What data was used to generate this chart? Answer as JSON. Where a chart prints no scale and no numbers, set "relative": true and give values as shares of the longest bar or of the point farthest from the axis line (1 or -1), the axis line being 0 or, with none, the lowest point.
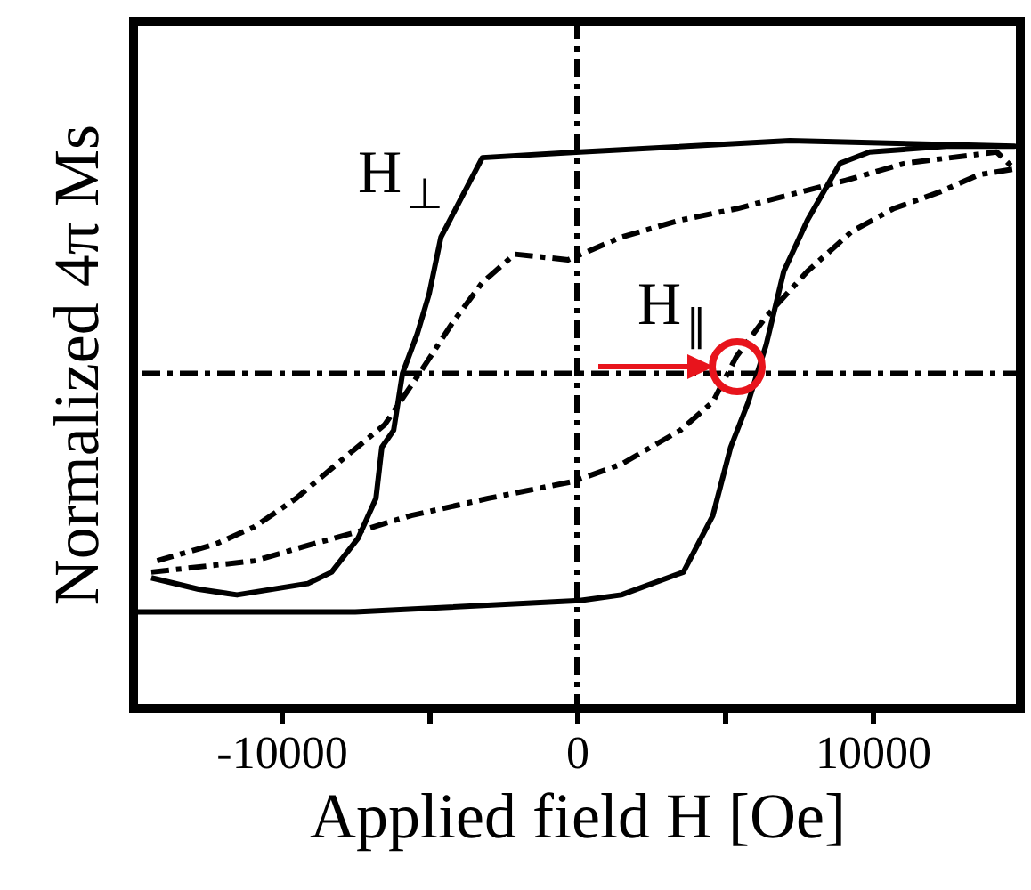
{
  "chart_data": {
    "type": "line",
    "relative": true,
    "xlabel": "Applied field H [Oe]",
    "ylabel": "Normalized  4π Ms",
    "xlim": [
      -15000,
      15000
    ],
    "xticks": [
      -10000,
      {
        "value": -5000,
        "label": null
      },
      0,
      {
        "value": 5000,
        "label": null
      },
      10000
    ],
    "grid": false,
    "marker": "none",
    "series": [
      {
        "color": "#000000",
        "line_style": "solid",
        "x": [
          -14900,
          -13600,
          -7500,
          100,
          1500,
          3600,
          4600,
          5200,
          5800,
          6400,
          7000,
          7800,
          8900,
          9900,
          12500,
          14800,
          7200,
          100,
          -3200,
          -4000,
          -4600,
          -5000,
          -5400,
          -5900,
          -6200,
          -6600,
          -6800,
          -7400,
          -8300,
          -9100,
          -11500,
          -12800,
          -14400
        ],
        "values": [
          0.17,
          0.17,
          0.17,
          0.19,
          0.2,
          0.24,
          0.34,
          0.46,
          0.54,
          0.64,
          0.77,
          0.86,
          0.96,
          0.98,
          0.99,
          0.99,
          1,
          0.98,
          0.97,
          0.89,
          0.83,
          0.73,
          0.66,
          0.59,
          0.49,
          0.46,
          0.37,
          0.3,
          0.24,
          0.22,
          0.2,
          0.21,
          0.23
        ]
      },
      {
        "color": "#000000",
        "line_style": "dashed",
        "x": [
          -14400,
          -10900,
          -8900,
          -7500,
          -5600,
          -3000,
          -100,
          1500,
          3500,
          4600,
          5400,
          6400,
          7800,
          9300,
          10700,
          12300,
          13600,
          14800,
          14200,
          11100,
          9100,
          7600,
          5400,
          3500,
          1500,
          -300,
          -2100,
          -3200,
          -4200,
          -5200,
          -6500,
          -7900,
          -9500,
          -10900,
          -12200,
          -14200
        ],
        "values": [
          0.24,
          0.26,
          0.29,
          0.31,
          0.34,
          0.37,
          0.4,
          0.43,
          0.49,
          0.54,
          0.62,
          0.69,
          0.77,
          0.84,
          0.88,
          0.91,
          0.94,
          0.95,
          0.98,
          0.96,
          0.93,
          0.91,
          0.88,
          0.86,
          0.83,
          0.79,
          0.8,
          0.75,
          0.68,
          0.6,
          0.5,
          0.44,
          0.37,
          0.32,
          0.29,
          0.26
        ]
      }
    ],
    "ref_lines": [
      {
        "axis": "y",
        "value": 0.59,
        "line_style": "dashed"
      },
      {
        "axis": "x",
        "value": 0,
        "line_style": "dashed"
      }
    ],
    "annotations": [
      "H$_{⊥}$",
      "H$_{∥}$"
    ]
  }
}
